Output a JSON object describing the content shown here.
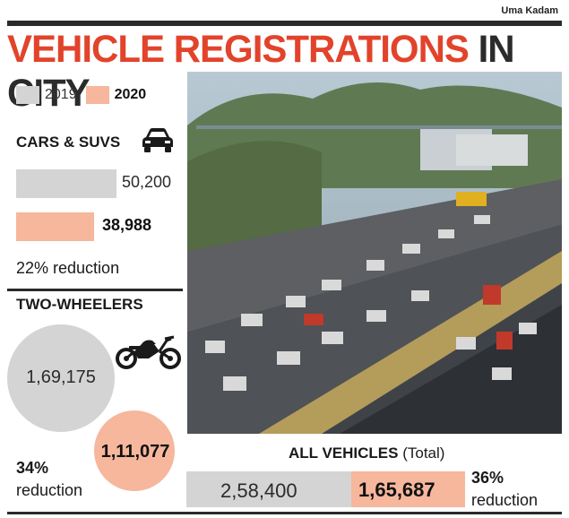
{
  "credit": "Uma Kadam",
  "headline": {
    "part1": "VEHICLE REGISTRATIONS",
    "part2": "IN CITY"
  },
  "legend": {
    "y2019": "2019",
    "y2020": "2020"
  },
  "colors": {
    "grey": "#d4d4d4",
    "pink": "#f6b79d",
    "red": "#e2432b",
    "dark": "#2b2b2b"
  },
  "icons": {
    "car": "car-icon",
    "bike": "motorcycle-icon"
  },
  "chart_data": [
    {
      "type": "bar",
      "title": "CARS & SUVS",
      "categories": [
        "2019",
        "2020"
      ],
      "values": [
        50200,
        38988
      ],
      "labels": [
        "50,200",
        "38,988"
      ],
      "reduction_text": "22% reduction"
    },
    {
      "type": "bubble",
      "title": "TWO-WHEELERS",
      "categories": [
        "2019",
        "2020"
      ],
      "values": [
        169175,
        111077
      ],
      "labels": [
        "1,69,175",
        "1,11,077"
      ],
      "reduction_pct": "34%",
      "reduction_word": "reduction"
    },
    {
      "type": "bar",
      "title_bold": "ALL VEHICLES",
      "title_suffix": " (Total)",
      "categories": [
        "2019",
        "2020"
      ],
      "values": [
        258400,
        165687
      ],
      "labels": [
        "2,58,400",
        "1,65,687"
      ],
      "reduction_pct": "36%",
      "reduction_word": "reduction"
    }
  ]
}
